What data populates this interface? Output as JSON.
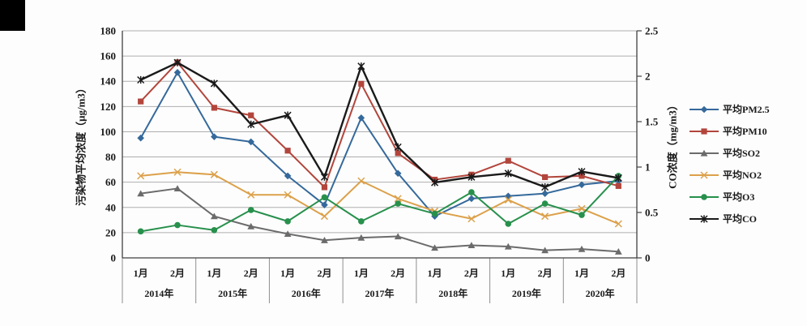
{
  "chart_data": {
    "type": "line",
    "title": "",
    "month_labels": [
      "1月",
      "2月"
    ],
    "x_groups": [
      "2014年",
      "2015年",
      "2016年",
      "2017年",
      "2018年",
      "2019年",
      "2020年"
    ],
    "y_left": {
      "label": "污染物平均浓度（μg/m3）",
      "min": 0,
      "max": 180,
      "step": 20,
      "ticks": [
        0,
        20,
        40,
        60,
        80,
        100,
        120,
        140,
        160,
        180
      ]
    },
    "y_right": {
      "label": "CO浓度（mg/m3）",
      "min": 0,
      "max": 2.5,
      "step": 0.5,
      "ticks": [
        0,
        0.5,
        1,
        1.5,
        2,
        2.5
      ]
    },
    "grid": true,
    "legend_position": "right",
    "series": [
      {
        "name": "平均PM2.5",
        "color": "#35699b",
        "marker": "diamond",
        "axis": "left",
        "values": [
          95,
          147,
          96,
          92,
          65,
          42,
          111,
          67,
          33,
          47,
          49,
          51,
          58,
          61
        ]
      },
      {
        "name": "平均PM10",
        "color": "#b2453c",
        "marker": "square",
        "axis": "left",
        "values": [
          124,
          155,
          119,
          113,
          85,
          56,
          138,
          83,
          62,
          66,
          77,
          64,
          65,
          57
        ]
      },
      {
        "name": "平均SO2",
        "color": "#6b6b6b",
        "marker": "triangle",
        "axis": "left",
        "values": [
          51,
          55,
          33,
          25,
          19,
          14,
          16,
          17,
          8,
          10,
          9,
          6,
          7,
          5
        ]
      },
      {
        "name": "平均NO2",
        "color": "#dca14b",
        "marker": "x",
        "axis": "left",
        "values": [
          65,
          68,
          66,
          50,
          50,
          33,
          61,
          47,
          37,
          31,
          46,
          33,
          39,
          27
        ]
      },
      {
        "name": "平均O3",
        "color": "#27904c",
        "marker": "circle",
        "axis": "left",
        "values": [
          21,
          26,
          22,
          38,
          29,
          48,
          29,
          43,
          35,
          52,
          27,
          43,
          34,
          65
        ]
      },
      {
        "name": "平均CO",
        "color": "#1a1a1a",
        "marker": "star",
        "axis": "right",
        "values": [
          1.96,
          2.15,
          1.92,
          1.47,
          1.57,
          0.89,
          2.11,
          1.22,
          0.83,
          0.89,
          0.93,
          0.78,
          0.95,
          0.88
        ]
      }
    ]
  },
  "decor": {
    "corner_patch_color": "#000000"
  }
}
